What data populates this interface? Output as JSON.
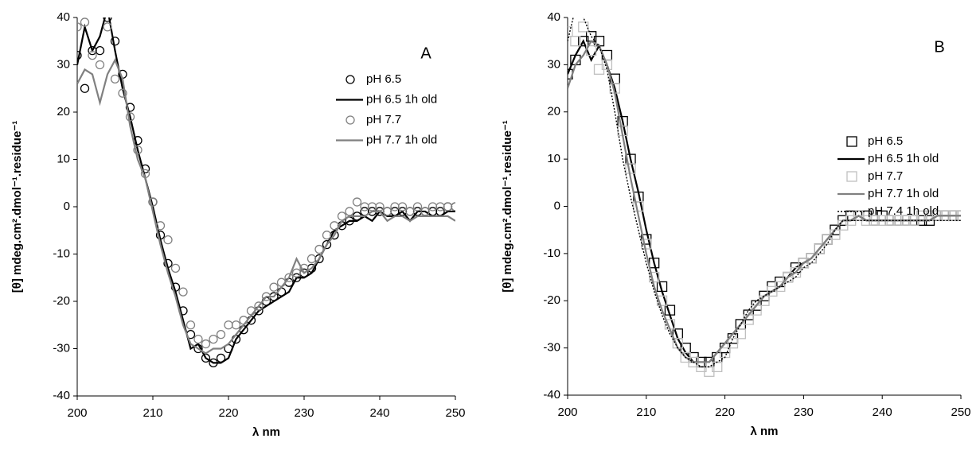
{
  "chart_data": [
    {
      "type": "line",
      "panel_label": "A",
      "xlabel": "λ nm",
      "ylabel": "[θ]  mdeg.cm².dmol⁻¹.residue⁻¹",
      "xlim": [
        200,
        250
      ],
      "ylim": [
        -40,
        40
      ],
      "xticks": [
        200,
        210,
        220,
        230,
        240,
        250
      ],
      "yticks": [
        -40,
        -30,
        -20,
        -10,
        0,
        10,
        20,
        30,
        40
      ],
      "legend": "upper right",
      "x": [
        200,
        201,
        202,
        203,
        204,
        205,
        206,
        207,
        208,
        209,
        210,
        211,
        212,
        213,
        214,
        215,
        216,
        217,
        218,
        219,
        220,
        221,
        222,
        223,
        224,
        225,
        226,
        227,
        228,
        229,
        230,
        231,
        232,
        233,
        234,
        235,
        236,
        237,
        238,
        239,
        240,
        241,
        242,
        243,
        244,
        245,
        246,
        247,
        248,
        249,
        250
      ],
      "series": [
        {
          "name": "pH 6.5",
          "color": "#000000",
          "marker": "circle",
          "line": "none",
          "values": [
            32,
            25,
            33,
            33,
            40,
            35,
            28,
            21,
            14,
            8,
            1,
            -6,
            -12,
            -17,
            -22,
            -27,
            -30,
            -32,
            -33,
            -32,
            -30,
            -28,
            -26,
            -24,
            -22,
            -20,
            -19,
            -18,
            -16,
            -15,
            -14,
            -13,
            -11,
            -8,
            -6,
            -4,
            -3,
            -2,
            -1,
            -1,
            -1,
            -1,
            -1,
            -1,
            -1,
            -1,
            -1,
            -1,
            -1,
            0,
            0
          ]
        },
        {
          "name": "pH 6.5 1h old",
          "color": "#000000",
          "marker": "none",
          "line": "solid",
          "values": [
            30,
            38,
            33,
            36,
            42,
            33,
            25,
            19,
            12,
            6,
            0,
            -7,
            -13,
            -18,
            -24,
            -30,
            -29,
            -32,
            -33,
            -33,
            -32,
            -28,
            -26,
            -24,
            -22,
            -21,
            -20,
            -19,
            -18,
            -15,
            -15,
            -14,
            -11,
            -8,
            -5,
            -4,
            -3,
            -3,
            -2,
            -3,
            -1,
            -2,
            -2,
            -1,
            -3,
            -1,
            -1,
            -2,
            -2,
            -1,
            -1
          ]
        },
        {
          "name": "pH 7.7",
          "color": "#808080",
          "marker": "circle",
          "line": "none",
          "values": [
            38,
            39,
            32,
            30,
            38,
            27,
            24,
            19,
            12,
            7,
            1,
            -4,
            -7,
            -13,
            -18,
            -25,
            -28,
            -29,
            -28,
            -27,
            -25,
            -25,
            -24,
            -22,
            -21,
            -19,
            -17,
            -16,
            -15,
            -14,
            -13,
            -11,
            -9,
            -6,
            -4,
            -2,
            -1,
            1,
            0,
            0,
            0,
            -1,
            0,
            0,
            -1,
            0,
            -1,
            0,
            0,
            0,
            0
          ]
        },
        {
          "name": "pH 7.7 1h old",
          "color": "#808080",
          "marker": "none",
          "line": "solid",
          "values": [
            26,
            29,
            28,
            22,
            28,
            31,
            27,
            17,
            10,
            6,
            -1,
            -8,
            -14,
            -19,
            -25,
            -29,
            -30,
            -31,
            -30,
            -30,
            -29,
            -27,
            -25,
            -23,
            -21,
            -19,
            -19,
            -17,
            -15,
            -11,
            -14,
            -13,
            -11,
            -8,
            -6,
            -3,
            -2,
            -2,
            -2,
            -1,
            -1,
            -3,
            -2,
            -2,
            -3,
            -2,
            -2,
            -2,
            -2,
            -2,
            -3
          ]
        }
      ]
    },
    {
      "type": "line",
      "panel_label": "B",
      "xlabel": "λ nm",
      "ylabel": "[θ] mdeg.cm².dmol⁻¹.residue⁻¹",
      "xlim": [
        200,
        250
      ],
      "ylim": [
        -40,
        40
      ],
      "xticks": [
        200,
        210,
        220,
        230,
        240,
        250
      ],
      "yticks": [
        -40,
        -30,
        -20,
        -10,
        0,
        10,
        20,
        30,
        40
      ],
      "legend": "upper right",
      "x": [
        200,
        201,
        202,
        203,
        204,
        205,
        206,
        207,
        208,
        209,
        210,
        211,
        212,
        213,
        214,
        215,
        216,
        217,
        218,
        219,
        220,
        221,
        222,
        223,
        224,
        225,
        226,
        227,
        228,
        229,
        230,
        231,
        232,
        233,
        234,
        235,
        236,
        237,
        238,
        239,
        240,
        241,
        242,
        243,
        244,
        245,
        246,
        247,
        248,
        249,
        250
      ],
      "series": [
        {
          "name": "pH 6.5",
          "color": "#000000",
          "marker": "square",
          "line": "none",
          "values": [
            28,
            31,
            35,
            36,
            35,
            32,
            27,
            18,
            10,
            2,
            -7,
            -12,
            -17,
            -22,
            -27,
            -30,
            -32,
            -33,
            -33,
            -32,
            -30,
            -28,
            -25,
            -23,
            -21,
            -19,
            -17,
            -16,
            -15,
            -13,
            -12,
            -11,
            -9,
            -7,
            -5,
            -3,
            -2,
            -2,
            -2,
            -3,
            -2,
            -3,
            -3,
            -3,
            -3,
            -3,
            -3,
            -2,
            -2,
            -2,
            -2
          ]
        },
        {
          "name": "pH 6.5 1h old",
          "color": "#000000",
          "marker": "none",
          "line": "solid",
          "values": [
            28,
            32,
            35,
            31,
            34,
            30,
            25,
            18,
            10,
            3,
            -5,
            -12,
            -18,
            -23,
            -28,
            -31,
            -33,
            -33,
            -33,
            -31,
            -29,
            -27,
            -25,
            -23,
            -21,
            -19,
            -18,
            -17,
            -15,
            -13,
            -12,
            -11,
            -9,
            -7,
            -5,
            -3,
            -3,
            -2,
            -3,
            -3,
            -3,
            -3,
            -3,
            -3,
            -3,
            -3,
            -3,
            -2,
            -2,
            -2,
            -2
          ]
        },
        {
          "name": "pH 7.7",
          "color": "#bfbfbf",
          "marker": "square",
          "line": "none",
          "values": [
            37,
            35,
            38,
            33,
            29,
            30,
            25,
            16,
            8,
            0,
            -8,
            -15,
            -20,
            -25,
            -29,
            -32,
            -33,
            -34,
            -35,
            -34,
            -31,
            -29,
            -27,
            -24,
            -22,
            -20,
            -18,
            -17,
            -15,
            -14,
            -12,
            -11,
            -9,
            -7,
            -6,
            -4,
            -3,
            -2,
            -3,
            -3,
            -3,
            -3,
            -3,
            -3,
            -3,
            -2,
            -2,
            -2,
            -2,
            -2,
            -2
          ]
        },
        {
          "name": "pH 7.7 1h old",
          "color": "#808080",
          "marker": "none",
          "line": "solid",
          "values": [
            25,
            30,
            32,
            35,
            34,
            30,
            24,
            15,
            6,
            -2,
            -10,
            -17,
            -22,
            -26,
            -30,
            -32,
            -33,
            -33,
            -33,
            -31,
            -29,
            -27,
            -25,
            -23,
            -21,
            -19,
            -18,
            -17,
            -15,
            -14,
            -12,
            -11,
            -9,
            -7,
            -5,
            -3,
            -3,
            -2,
            -3,
            -3,
            -3,
            -3,
            -3,
            -3,
            -3,
            -3,
            -3,
            -2,
            -2,
            -2,
            -2
          ]
        },
        {
          "name": "pH 7.4 1h old",
          "color": "#000000",
          "marker": "none",
          "line": "dotted",
          "values": [
            35,
            42,
            40,
            36,
            34,
            29,
            20,
            10,
            2,
            -5,
            -12,
            -18,
            -23,
            -27,
            -30,
            -32,
            -33,
            -34,
            -34,
            -33,
            -32,
            -28,
            -25,
            -22,
            -20,
            -19,
            -18,
            -17,
            -16,
            -15,
            -13,
            -12,
            -10,
            -8,
            -5,
            -3,
            -3,
            -3,
            -3,
            -3,
            -3,
            -3,
            -3,
            -3,
            -3,
            -3,
            -3,
            -3,
            -3,
            -3,
            -3
          ]
        }
      ]
    }
  ]
}
